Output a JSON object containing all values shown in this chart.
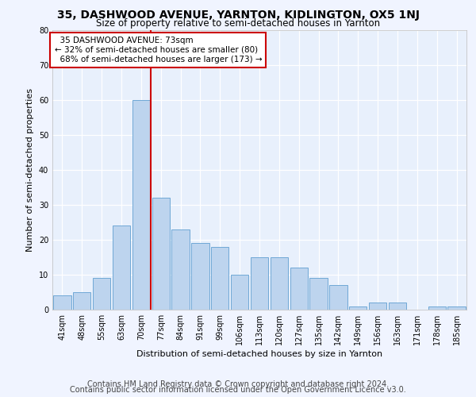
{
  "title": "35, DASHWOOD AVENUE, YARNTON, KIDLINGTON, OX5 1NJ",
  "subtitle": "Size of property relative to semi-detached houses in Yarnton",
  "xlabel": "Distribution of semi-detached houses by size in Yarnton",
  "ylabel": "Number of semi-detached properties",
  "categories": [
    "41sqm",
    "48sqm",
    "55sqm",
    "63sqm",
    "70sqm",
    "77sqm",
    "84sqm",
    "91sqm",
    "99sqm",
    "106sqm",
    "113sqm",
    "120sqm",
    "127sqm",
    "135sqm",
    "142sqm",
    "149sqm",
    "156sqm",
    "163sqm",
    "171sqm",
    "178sqm",
    "185sqm"
  ],
  "values": [
    4,
    5,
    9,
    24,
    60,
    32,
    23,
    19,
    18,
    10,
    15,
    15,
    12,
    9,
    7,
    1,
    2,
    2,
    0,
    1,
    1
  ],
  "bar_color": "#BDD4EE",
  "bar_edge_color": "#6FA8D6",
  "property_label": "35 DASHWOOD AVENUE: 73sqm",
  "pct_smaller": 32,
  "pct_smaller_count": 80,
  "pct_larger": 68,
  "pct_larger_count": 173,
  "vline_bin_index": 4,
  "vline_color": "#CC0000",
  "annotation_box_color": "#CC0000",
  "ylim": [
    0,
    80
  ],
  "yticks": [
    0,
    10,
    20,
    30,
    40,
    50,
    60,
    70,
    80
  ],
  "footer1": "Contains HM Land Registry data © Crown copyright and database right 2024.",
  "footer2": "Contains public sector information licensed under the Open Government Licence v3.0.",
  "bg_color": "#E8F0FC",
  "fig_color": "#F0F4FF",
  "grid_color": "#FFFFFF",
  "title_fontsize": 10,
  "subtitle_fontsize": 8.5,
  "axis_label_fontsize": 8,
  "tick_fontsize": 7,
  "footer_fontsize": 7
}
